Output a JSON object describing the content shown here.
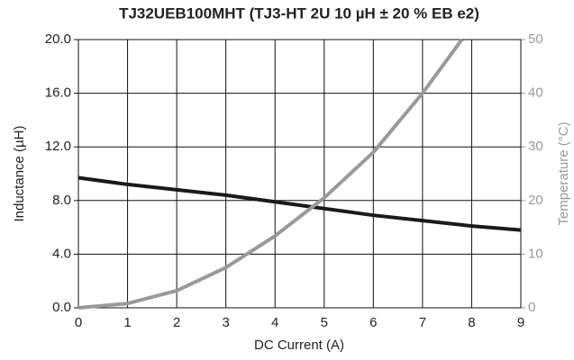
{
  "chart_data": {
    "type": "line",
    "title": "TJ32UEB100MHT (TJ3-HT 2U 10 µH ± 20 % EB e2)",
    "x_label": "DC Current  (A)",
    "y_label": "Inductance  (µH)",
    "y2_label": "Temperature  (°C)",
    "xlim": [
      0,
      9
    ],
    "xticks": [
      0,
      1,
      2,
      3,
      4,
      5,
      6,
      7,
      8,
      9
    ],
    "ylim": [
      0,
      20
    ],
    "yticks": [
      {
        "value": 0,
        "label": "0.0"
      },
      {
        "value": 4,
        "label": "4.0"
      },
      {
        "value": 8,
        "label": "8.0"
      },
      {
        "value": 12,
        "label": "12.0"
      },
      {
        "value": 16,
        "label": "16.0"
      },
      {
        "value": 20,
        "label": "20.0"
      }
    ],
    "y2lim": [
      0,
      50
    ],
    "y2ticks": [
      0,
      10,
      20,
      30,
      40,
      50
    ],
    "y2_color": "#999999",
    "grid": true,
    "series": [
      {
        "name": "Inductance",
        "color": "#1a1a1a",
        "x": [
          0,
          1,
          2,
          3,
          4,
          5,
          6,
          7,
          8,
          9
        ],
        "values": [
          9.7,
          9.2,
          8.8,
          8.4,
          7.9,
          7.4,
          6.9,
          6.5,
          6.1,
          5.8
        ]
      },
      {
        "name": "Temperature",
        "color": "#999999",
        "axis": "y2",
        "x": [
          0,
          1,
          2,
          3,
          4,
          5,
          6,
          7,
          7.8
        ],
        "values": [
          0,
          0.8,
          3.2,
          7.5,
          13.4,
          20.5,
          29,
          40,
          50
        ]
      }
    ]
  }
}
